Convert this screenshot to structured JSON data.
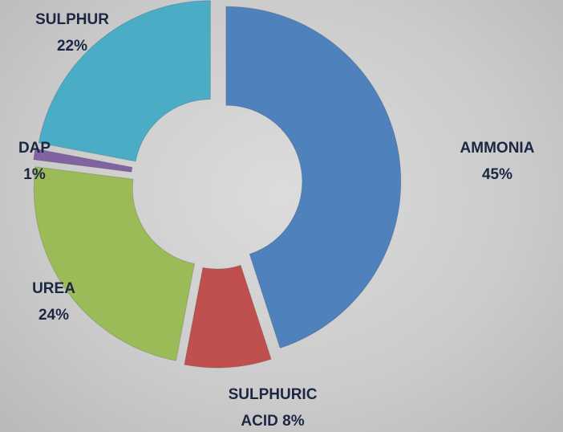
{
  "chart_data": {
    "type": "donut",
    "categories": [
      "AMMONIA",
      "SULPHURIC ACID",
      "UREA",
      "DAP",
      "SULPHUR"
    ],
    "values": [
      45,
      8,
      24,
      1,
      22
    ],
    "value_labels": [
      "45%",
      "8%",
      "24%",
      "1%",
      "22%"
    ],
    "colors": [
      "#4f81bd",
      "#c0504d",
      "#9bbb59",
      "#8064a2",
      "#4bacc6"
    ]
  }
}
